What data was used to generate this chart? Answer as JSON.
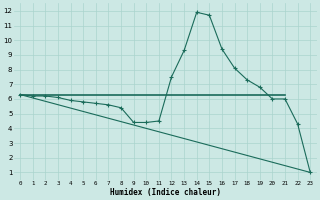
{
  "xlabel": "Humidex (Indice chaleur)",
  "bg_color": "#cce8e4",
  "line_color": "#1a6b5a",
  "grid_color": "#aad4ce",
  "xlim": [
    -0.5,
    23.5
  ],
  "ylim": [
    0.5,
    12.5
  ],
  "xticks": [
    0,
    1,
    2,
    3,
    4,
    5,
    6,
    7,
    8,
    9,
    10,
    11,
    12,
    13,
    14,
    15,
    16,
    17,
    18,
    19,
    20,
    21,
    22,
    23
  ],
  "yticks": [
    1,
    2,
    3,
    4,
    5,
    6,
    7,
    8,
    9,
    10,
    11,
    12
  ],
  "line1_x": [
    0,
    1,
    2,
    3,
    4,
    5,
    6,
    7,
    8,
    9,
    10,
    11,
    12,
    13,
    14,
    15,
    16,
    17,
    18,
    19,
    20,
    21,
    22,
    23
  ],
  "line1_y": [
    6.3,
    6.2,
    6.2,
    6.1,
    5.9,
    5.8,
    5.7,
    5.6,
    5.4,
    4.4,
    4.4,
    4.5,
    7.5,
    9.3,
    11.9,
    11.7,
    9.4,
    8.1,
    7.3,
    6.8,
    6.0,
    6.0,
    4.3,
    1.0
  ],
  "line2_x": [
    0,
    21
  ],
  "line2_y": [
    6.3,
    6.3
  ],
  "line3_x": [
    0,
    23
  ],
  "line3_y": [
    6.3,
    1.0
  ]
}
